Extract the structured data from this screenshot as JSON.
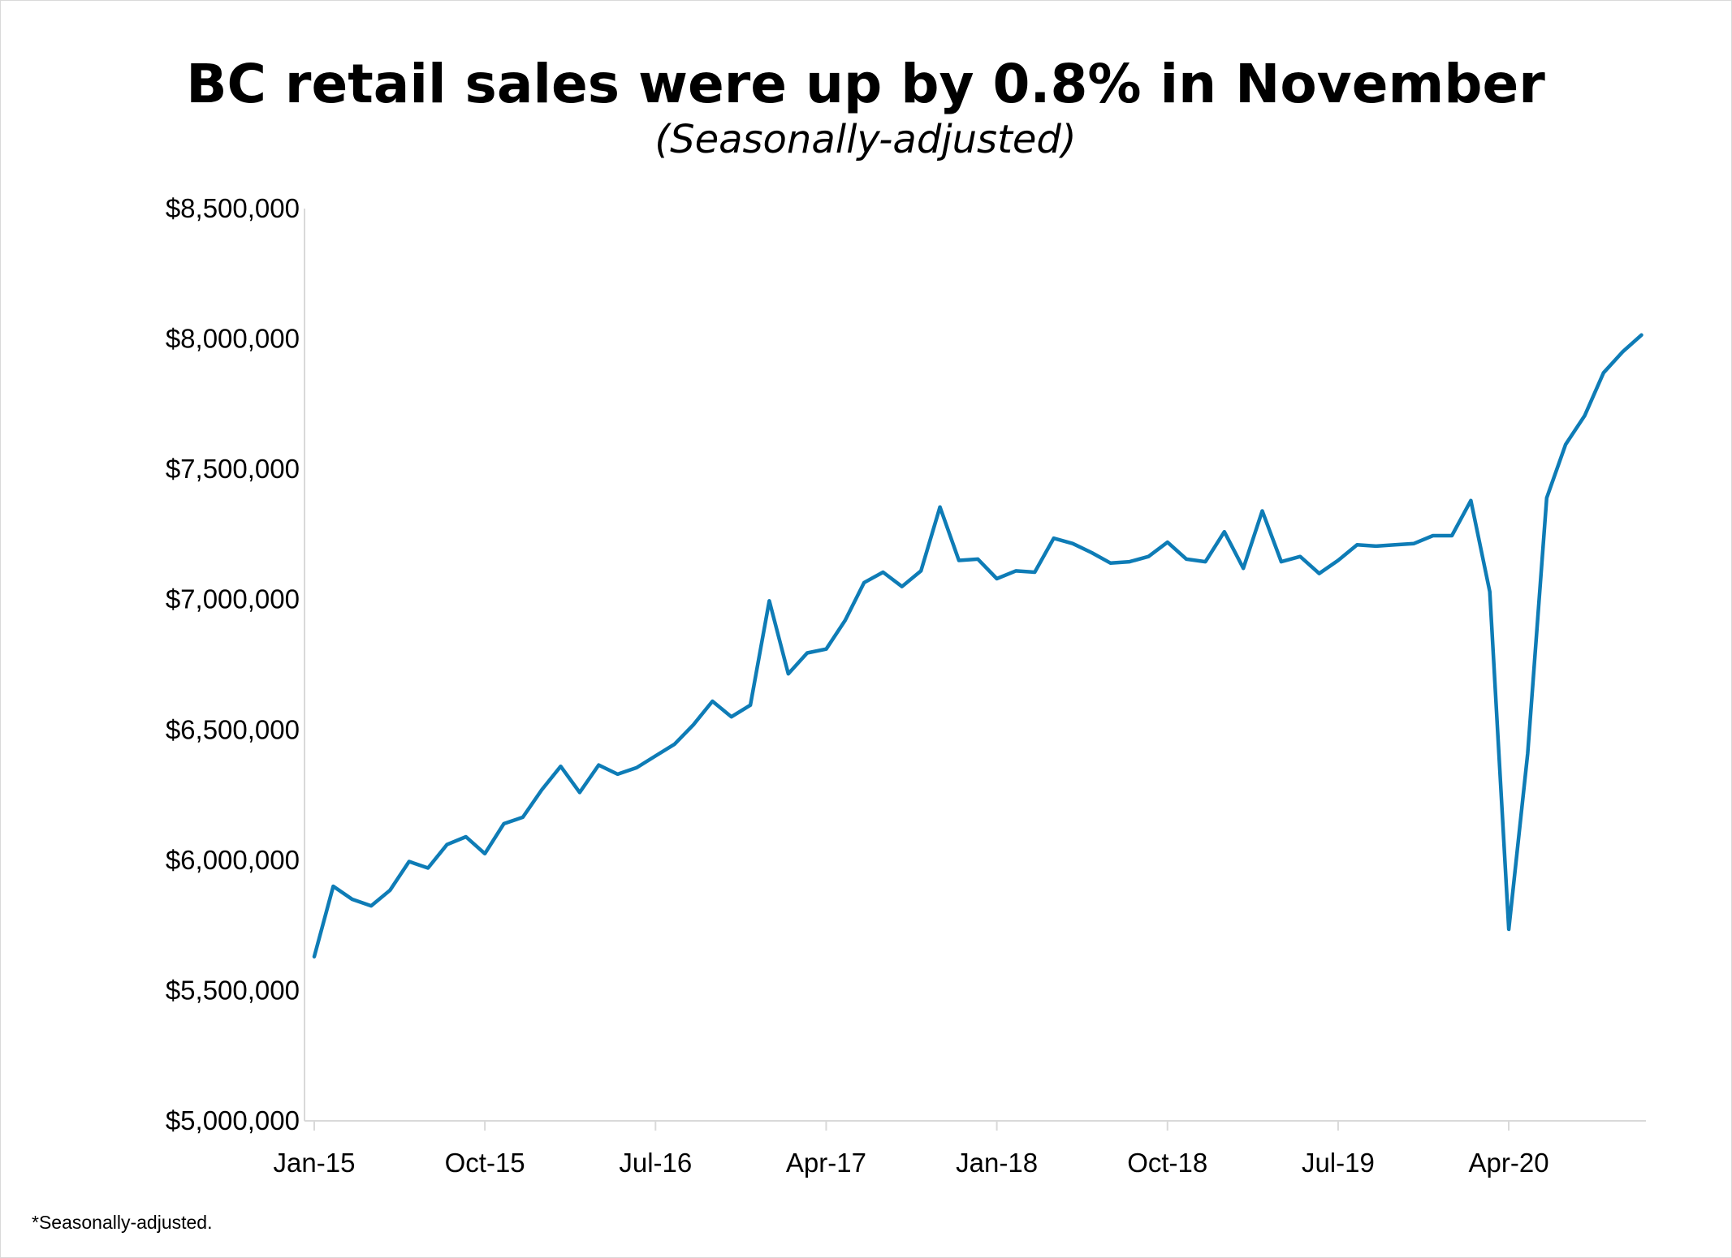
{
  "chart_data": {
    "type": "line",
    "title": "BC retail sales were up by 0.8% in November",
    "subtitle": "(Seasonally-adjusted)",
    "footnote": "*Seasonally-adjusted.",
    "xlabel": "",
    "ylabel": "",
    "ylim": [
      5000000,
      8500000
    ],
    "y_ticks": [
      "$5,000,000",
      "$5,500,000",
      "$6,000,000",
      "$6,500,000",
      "$7,000,000",
      "$7,500,000",
      "$8,000,000",
      "$8,500,000"
    ],
    "x_ticks": [
      "Jan-15",
      "Oct-15",
      "Jul-16",
      "Apr-17",
      "Jan-18",
      "Oct-18",
      "Jul-19",
      "Apr-20"
    ],
    "grid": false,
    "legend": "none",
    "line_color": "#0e7cb6",
    "x": [
      "Jan-15",
      "Feb-15",
      "Mar-15",
      "Apr-15",
      "May-15",
      "Jun-15",
      "Jul-15",
      "Aug-15",
      "Sep-15",
      "Oct-15",
      "Nov-15",
      "Dec-15",
      "Jan-16",
      "Feb-16",
      "Mar-16",
      "Apr-16",
      "May-16",
      "Jun-16",
      "Jul-16",
      "Aug-16",
      "Sep-16",
      "Oct-16",
      "Nov-16",
      "Dec-16",
      "Jan-17",
      "Feb-17",
      "Mar-17",
      "Apr-17",
      "May-17",
      "Jun-17",
      "Jul-17",
      "Aug-17",
      "Sep-17",
      "Oct-17",
      "Nov-17",
      "Dec-17",
      "Jan-18",
      "Feb-18",
      "Mar-18",
      "Apr-18",
      "May-18",
      "Jun-18",
      "Jul-18",
      "Aug-18",
      "Sep-18",
      "Oct-18",
      "Nov-18",
      "Dec-18",
      "Jan-19",
      "Feb-19",
      "Mar-19",
      "Apr-19",
      "May-19",
      "Jun-19",
      "Jul-19",
      "Aug-19",
      "Sep-19",
      "Oct-19",
      "Nov-19",
      "Dec-19",
      "Jan-20",
      "Feb-20",
      "Mar-20",
      "Apr-20",
      "May-20",
      "Jun-20",
      "Jul-20",
      "Aug-20",
      "Sep-20",
      "Oct-20",
      "Nov-20"
    ],
    "series": [
      {
        "values": [
          5630000,
          5900000,
          5850000,
          5825000,
          5885000,
          5995000,
          5970000,
          6060000,
          6090000,
          6025000,
          6140000,
          6165000,
          6270000,
          6360000,
          6260000,
          6365000,
          6330000,
          6355000,
          6400000,
          6445000,
          6520000,
          6610000,
          6550000,
          6595000,
          6995000,
          6715000,
          6795000,
          6810000,
          6920000,
          7065000,
          7105000,
          7050000,
          7110000,
          7355000,
          7150000,
          7155000,
          7080000,
          7110000,
          7105000,
          7235000,
          7215000,
          7180000,
          7140000,
          7145000,
          7165000,
          7220000,
          7155000,
          7145000,
          7260000,
          7120000,
          7340000,
          7145000,
          7165000,
          7100000,
          7150000,
          7210000,
          7205000,
          7210000,
          7215000,
          7245000,
          7245000,
          7380000,
          7030000,
          5735000,
          6410000,
          7390000,
          7595000,
          7705000,
          7870000,
          7950000,
          8015000
        ]
      }
    ]
  }
}
